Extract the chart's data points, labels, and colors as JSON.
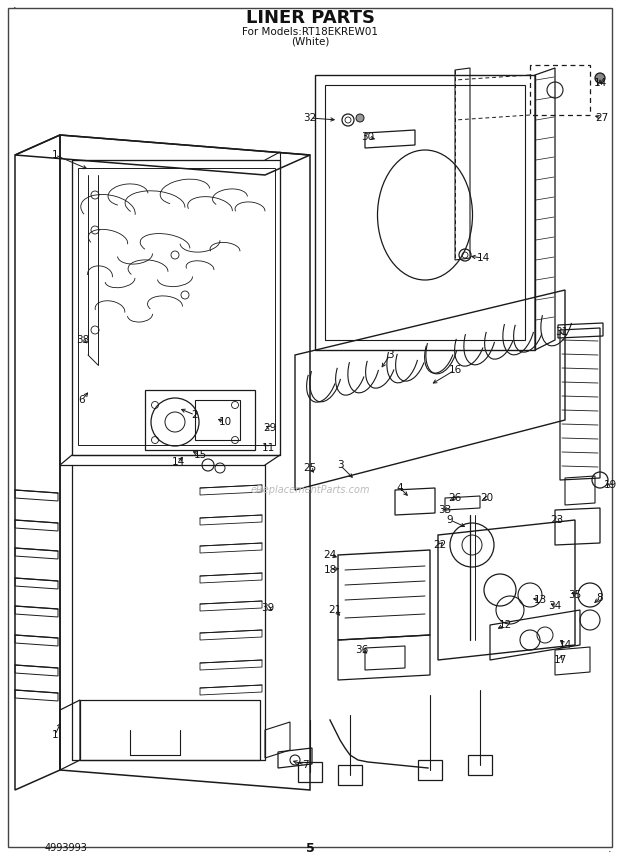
{
  "title": "LINER PARTS",
  "subtitle1": "For Models:RT18EKREW01",
  "subtitle2": "(White)",
  "page_number": "5",
  "catalog_number": "4993993",
  "bg_color": "#ffffff",
  "line_color": "#1a1a1a",
  "text_color": "#111111",
  "watermark": "eReplacementParts.com",
  "figsize": [
    6.2,
    8.61
  ],
  "dpi": 100
}
